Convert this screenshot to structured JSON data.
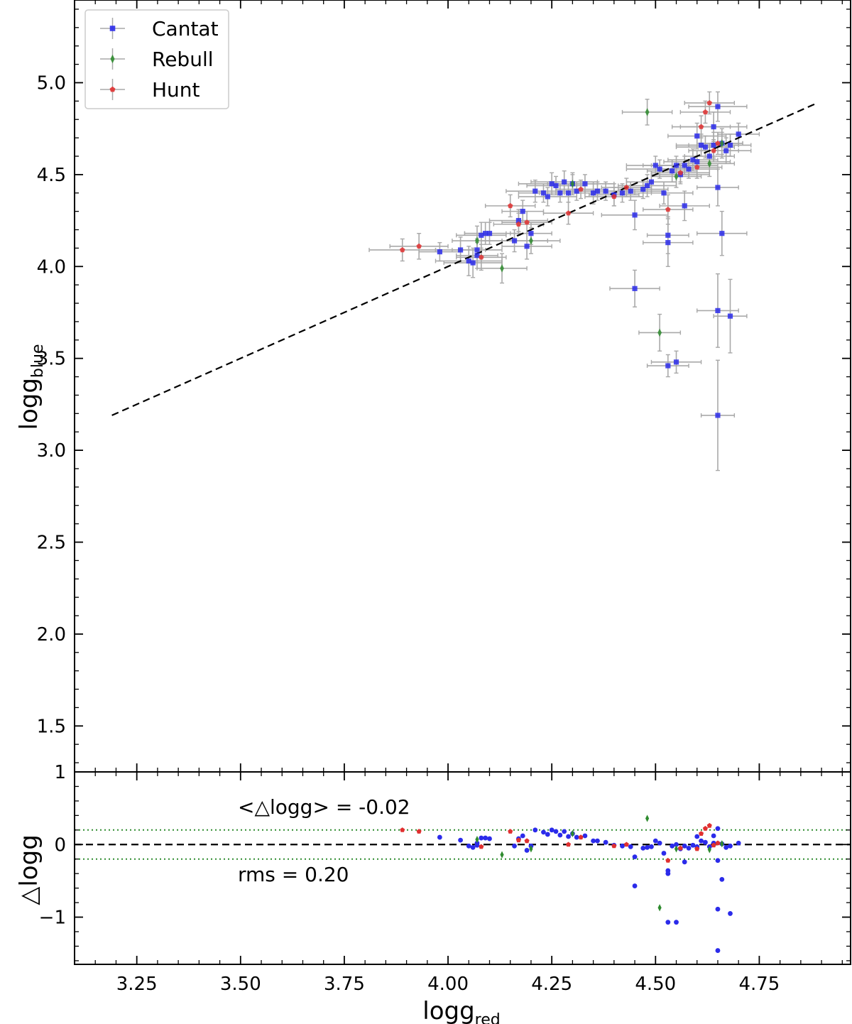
{
  "chart_data": {
    "type": "scatter",
    "main": {
      "xlim": [
        3.1,
        4.97
      ],
      "ylim": [
        1.25,
        5.45
      ],
      "x_ticks": [
        3.25,
        3.5,
        3.75,
        4.0,
        4.25,
        4.5,
        4.75
      ],
      "y_ticks": [
        1.5,
        2.0,
        2.5,
        3.0,
        3.5,
        4.0,
        4.5,
        5.0
      ],
      "y_tick_labels": [
        "1.5",
        "2.0",
        "2.5",
        "3.0",
        "3.5",
        "4.0",
        "4.5",
        "5.0"
      ],
      "ylabel_base": "logg",
      "ylabel_sub": "blue",
      "fit_line": {
        "x": [
          3.19,
          4.89
        ],
        "y": [
          3.19,
          4.89
        ],
        "style": "dashed"
      },
      "legend": {
        "position": "top-left",
        "entries": [
          {
            "label": "Cantat",
            "marker": "square",
            "color": "#2b2bea"
          },
          {
            "label": "Rebull",
            "marker": "diamond",
            "color": "#2e8b2e"
          },
          {
            "label": "Hunt",
            "marker": "pentagon",
            "color": "#e03030"
          }
        ]
      },
      "series": [
        {
          "name": "Cantat",
          "marker": "square",
          "color": "#2b2bea",
          "points": [
            [
              3.98,
              4.08,
              0.05,
              0.05
            ],
            [
              4.03,
              4.09,
              0.06,
              0.07
            ],
            [
              4.05,
              4.03,
              0.08,
              0.08
            ],
            [
              4.06,
              4.02,
              0.07,
              0.08
            ],
            [
              4.07,
              4.09,
              0.06,
              0.06
            ],
            [
              4.07,
              4.06,
              0.05,
              0.07
            ],
            [
              4.08,
              4.17,
              0.06,
              0.07
            ],
            [
              4.09,
              4.18,
              0.05,
              0.06
            ],
            [
              4.1,
              4.18,
              0.06,
              0.06
            ],
            [
              4.16,
              4.14,
              0.08,
              0.06
            ],
            [
              4.17,
              4.25,
              0.07,
              0.06
            ],
            [
              4.18,
              4.3,
              0.05,
              0.06
            ],
            [
              4.19,
              4.11,
              0.06,
              0.07
            ],
            [
              4.2,
              4.18,
              0.05,
              0.06
            ],
            [
              4.21,
              4.41,
              0.07,
              0.06
            ],
            [
              4.23,
              4.4,
              0.06,
              0.05
            ],
            [
              4.24,
              4.38,
              0.07,
              0.05
            ],
            [
              4.25,
              4.45,
              0.08,
              0.06
            ],
            [
              4.26,
              4.44,
              0.07,
              0.05
            ],
            [
              4.27,
              4.4,
              0.06,
              0.05
            ],
            [
              4.28,
              4.46,
              0.08,
              0.06
            ],
            [
              4.29,
              4.4,
              0.07,
              0.05
            ],
            [
              4.3,
              4.45,
              0.06,
              0.05
            ],
            [
              4.31,
              4.41,
              0.05,
              0.05
            ],
            [
              4.33,
              4.45,
              0.07,
              0.05
            ],
            [
              4.35,
              4.4,
              0.07,
              0.06
            ],
            [
              4.36,
              4.41,
              0.06,
              0.05
            ],
            [
              4.38,
              4.41,
              0.07,
              0.05
            ],
            [
              4.4,
              4.39,
              0.06,
              0.06
            ],
            [
              4.42,
              4.4,
              0.07,
              0.05
            ],
            [
              4.44,
              4.41,
              0.08,
              0.05
            ],
            [
              4.45,
              4.28,
              0.08,
              0.08
            ],
            [
              4.45,
              3.88,
              0.06,
              0.1
            ],
            [
              4.47,
              4.42,
              0.06,
              0.05
            ],
            [
              4.48,
              4.44,
              0.07,
              0.06
            ],
            [
              4.49,
              4.46,
              0.06,
              0.06
            ],
            [
              4.5,
              4.55,
              0.07,
              0.05
            ],
            [
              4.51,
              4.53,
              0.08,
              0.05
            ],
            [
              4.52,
              4.4,
              0.07,
              0.06
            ],
            [
              4.53,
              4.17,
              0.05,
              0.1
            ],
            [
              4.53,
              4.13,
              0.06,
              0.13
            ],
            [
              4.53,
              3.46,
              0.05,
              0.06
            ],
            [
              4.54,
              4.52,
              0.06,
              0.06
            ],
            [
              4.55,
              4.55,
              0.08,
              0.05
            ],
            [
              4.55,
              3.48,
              0.06,
              0.06
            ],
            [
              4.56,
              4.5,
              0.07,
              0.05
            ],
            [
              4.57,
              4.55,
              0.08,
              0.05
            ],
            [
              4.57,
              4.33,
              0.06,
              0.08
            ],
            [
              4.58,
              4.53,
              0.07,
              0.05
            ],
            [
              4.59,
              4.58,
              0.06,
              0.06
            ],
            [
              4.6,
              4.71,
              0.07,
              0.07
            ],
            [
              4.6,
              4.57,
              0.08,
              0.06
            ],
            [
              4.61,
              4.66,
              0.06,
              0.06
            ],
            [
              4.62,
              4.65,
              0.07,
              0.06
            ],
            [
              4.63,
              4.6,
              0.06,
              0.05
            ],
            [
              4.64,
              4.76,
              0.08,
              0.08
            ],
            [
              4.64,
              4.66,
              0.06,
              0.07
            ],
            [
              4.65,
              4.87,
              0.07,
              0.08
            ],
            [
              4.65,
              4.43,
              0.05,
              0.1
            ],
            [
              4.65,
              3.76,
              0.05,
              0.2
            ],
            [
              4.65,
              3.19,
              0.04,
              0.3
            ],
            [
              4.66,
              4.67,
              0.05,
              0.08
            ],
            [
              4.66,
              4.18,
              0.06,
              0.12
            ],
            [
              4.67,
              4.63,
              0.06,
              0.07
            ],
            [
              4.68,
              4.66,
              0.05,
              0.06
            ],
            [
              4.68,
              3.73,
              0.04,
              0.2
            ],
            [
              4.7,
              4.72,
              0.05,
              0.06
            ]
          ]
        },
        {
          "name": "Rebull",
          "marker": "diamond",
          "color": "#2e8b2e",
          "points": [
            [
              4.07,
              4.14,
              0.06,
              0.08
            ],
            [
              4.13,
              3.99,
              0.06,
              0.08
            ],
            [
              4.2,
              4.14,
              0.07,
              0.07
            ],
            [
              4.3,
              4.45,
              0.06,
              0.06
            ],
            [
              4.48,
              4.84,
              0.06,
              0.07
            ],
            [
              4.51,
              3.64,
              0.05,
              0.1
            ],
            [
              4.55,
              4.49,
              0.06,
              0.06
            ],
            [
              4.63,
              4.56,
              0.06,
              0.07
            ],
            [
              4.66,
              4.67,
              0.05,
              0.06
            ]
          ]
        },
        {
          "name": "Hunt",
          "marker": "pentagon",
          "color": "#e03030",
          "points": [
            [
              3.89,
              4.09,
              0.08,
              0.06
            ],
            [
              3.93,
              4.11,
              0.07,
              0.07
            ],
            [
              4.08,
              4.05,
              0.06,
              0.07
            ],
            [
              4.15,
              4.33,
              0.06,
              0.06
            ],
            [
              4.17,
              4.23,
              0.06,
              0.06
            ],
            [
              4.19,
              4.24,
              0.06,
              0.06
            ],
            [
              4.29,
              4.29,
              0.06,
              0.06
            ],
            [
              4.32,
              4.42,
              0.06,
              0.05
            ],
            [
              4.4,
              4.38,
              0.07,
              0.05
            ],
            [
              4.43,
              4.43,
              0.06,
              0.05
            ],
            [
              4.53,
              4.31,
              0.06,
              0.08
            ],
            [
              4.56,
              4.51,
              0.07,
              0.05
            ],
            [
              4.6,
              4.54,
              0.06,
              0.06
            ],
            [
              4.61,
              4.76,
              0.07,
              0.06
            ],
            [
              4.62,
              4.84,
              0.06,
              0.06
            ],
            [
              4.63,
              4.89,
              0.06,
              0.06
            ],
            [
              4.64,
              4.63,
              0.06,
              0.06
            ],
            [
              4.65,
              4.67,
              0.05,
              0.06
            ]
          ]
        }
      ]
    },
    "residual": {
      "xlim": [
        3.1,
        4.97
      ],
      "ylim": [
        -1.65,
        1.0
      ],
      "x_ticks": [
        3.25,
        3.5,
        3.75,
        4.0,
        4.25,
        4.5,
        4.75
      ],
      "x_tick_labels": [
        "3.25",
        "3.50",
        "3.75",
        "4.00",
        "4.25",
        "4.50",
        "4.75"
      ],
      "y_ticks": [
        -1,
        0,
        1
      ],
      "y_tick_labels": [
        "−1",
        "0",
        "1"
      ],
      "xlabel_base": "logg",
      "xlabel_sub": "red",
      "ylabel": "△logg",
      "hlines": [
        {
          "y": 0,
          "style": "dashed",
          "color": "#000000"
        },
        {
          "y": 0.2,
          "style": "dotted",
          "color": "#2e8b2e"
        },
        {
          "y": -0.2,
          "style": "dotted",
          "color": "#2e8b2e"
        }
      ],
      "annotations": {
        "mean": "<△logg> = -0.02",
        "rms": "rms = 0.20"
      }
    }
  }
}
